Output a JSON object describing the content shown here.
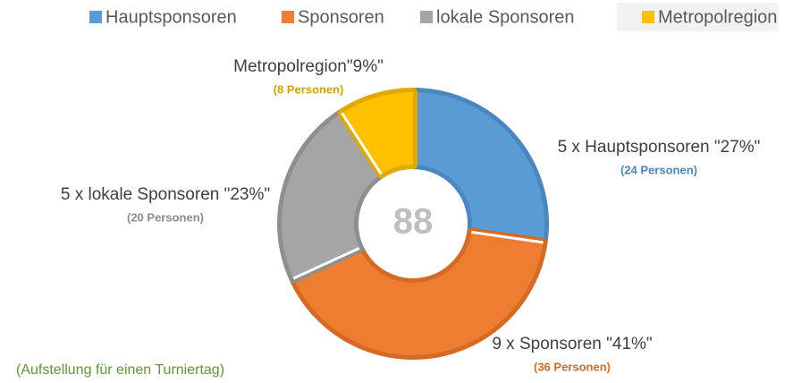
{
  "chart_data": {
    "type": "donut",
    "categories": [
      "Hauptsponsoren",
      "Sponsoren",
      "lokale Sponsoren",
      "Metropolregion"
    ],
    "values": [
      24,
      36,
      20,
      8
    ],
    "labels": [
      "5 x Hauptsponsoren \"27%\"",
      "9 x Sponsoren \"41%\"",
      "5 x lokale Sponsoren \"23%\"",
      "Metropolregion\"9%\""
    ],
    "value_labels": [
      "(24 Personen)",
      "(36 Personen)",
      "(20 Personen)",
      "(8 Personen)"
    ],
    "colors": [
      "#5b9bd5",
      "#ed7d31",
      "#a5a5a5",
      "#ffc000"
    ],
    "edge_colors": [
      "#4a86c0",
      "#d56a22",
      "#8f8f8f",
      "#e0a800"
    ],
    "label_colors": [
      "#4a86c8",
      "#d56a22",
      "#8c8c8c",
      "#d4a500"
    ],
    "total": 88,
    "footnote": "(Aufstellung für einen Turniertag)",
    "legend": "top"
  }
}
